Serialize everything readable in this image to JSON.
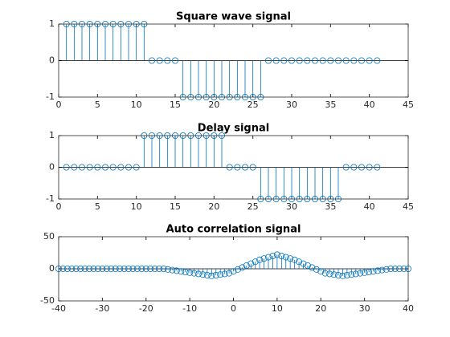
{
  "chart_data": [
    {
      "type": "stem",
      "title": "Square wave signal",
      "color": "#0072bd",
      "x": [
        1,
        2,
        3,
        4,
        5,
        6,
        7,
        8,
        9,
        10,
        11,
        12,
        13,
        14,
        15,
        16,
        17,
        18,
        19,
        20,
        21,
        22,
        23,
        24,
        25,
        26,
        27,
        28,
        29,
        30,
        31,
        32,
        33,
        34,
        35,
        36,
        37,
        38,
        39,
        40,
        41
      ],
      "values": [
        1,
        1,
        1,
        1,
        1,
        1,
        1,
        1,
        1,
        1,
        1,
        0,
        0,
        0,
        0,
        -1,
        -1,
        -1,
        -1,
        -1,
        -1,
        -1,
        -1,
        -1,
        -1,
        -1,
        0,
        0,
        0,
        0,
        0,
        0,
        0,
        0,
        0,
        0,
        0,
        0,
        0,
        0,
        0
      ],
      "xlim": [
        0,
        45
      ],
      "xticks": [
        0,
        5,
        10,
        15,
        20,
        25,
        30,
        35,
        40,
        45
      ],
      "ylim": [
        -1,
        1
      ],
      "yticks": [
        -1,
        0,
        1
      ]
    },
    {
      "type": "stem",
      "title": "Delay signal",
      "color": "#0072bd",
      "x": [
        1,
        2,
        3,
        4,
        5,
        6,
        7,
        8,
        9,
        10,
        11,
        12,
        13,
        14,
        15,
        16,
        17,
        18,
        19,
        20,
        21,
        22,
        23,
        24,
        25,
        26,
        27,
        28,
        29,
        30,
        31,
        32,
        33,
        34,
        35,
        36,
        37,
        38,
        39,
        40,
        41
      ],
      "values": [
        0,
        0,
        0,
        0,
        0,
        0,
        0,
        0,
        0,
        0,
        1,
        1,
        1,
        1,
        1,
        1,
        1,
        1,
        1,
        1,
        1,
        0,
        0,
        0,
        0,
        -1,
        -1,
        -1,
        -1,
        -1,
        -1,
        -1,
        -1,
        -1,
        -1,
        -1,
        0,
        0,
        0,
        0,
        0
      ],
      "xlim": [
        0,
        45
      ],
      "xticks": [
        0,
        5,
        10,
        15,
        20,
        25,
        30,
        35,
        40,
        45
      ],
      "ylim": [
        -1,
        1
      ],
      "yticks": [
        -1,
        0,
        1
      ]
    },
    {
      "type": "stem",
      "title": "Auto correlation signal",
      "color": "#0072bd",
      "x": [
        -40,
        -39,
        -38,
        -37,
        -36,
        -35,
        -34,
        -33,
        -32,
        -31,
        -30,
        -29,
        -28,
        -27,
        -26,
        -25,
        -24,
        -23,
        -22,
        -21,
        -20,
        -19,
        -18,
        -17,
        -16,
        -15,
        -14,
        -13,
        -12,
        -11,
        -10,
        -9,
        -8,
        -7,
        -6,
        -5,
        -4,
        -3,
        -2,
        -1,
        0,
        1,
        2,
        3,
        4,
        5,
        6,
        7,
        8,
        9,
        10,
        11,
        12,
        13,
        14,
        15,
        16,
        17,
        18,
        19,
        20,
        21,
        22,
        23,
        24,
        25,
        26,
        27,
        28,
        29,
        30,
        31,
        32,
        33,
        34,
        35,
        36,
        37,
        38,
        39,
        40
      ],
      "values": [
        0,
        0,
        0,
        0,
        0,
        0,
        0,
        0,
        0,
        0,
        0,
        0,
        0,
        0,
        0,
        0,
        0,
        0,
        0,
        0,
        0,
        0,
        0,
        0,
        0,
        -1,
        -2,
        -3,
        -4,
        -5,
        -6,
        -7,
        -8,
        -9,
        -10,
        -11,
        -10,
        -9,
        -8,
        -7,
        -4,
        -1,
        2,
        5,
        8,
        11,
        14,
        16,
        18,
        20,
        22,
        20,
        18,
        16,
        14,
        11,
        8,
        5,
        2,
        -1,
        -4,
        -7,
        -8,
        -9,
        -10,
        -11,
        -10,
        -9,
        -8,
        -7,
        -6,
        -5,
        -4,
        -3,
        -2,
        -1,
        0,
        0,
        0,
        0,
        0
      ],
      "xlim": [
        -40,
        40
      ],
      "xticks": [
        -40,
        -30,
        -20,
        -10,
        0,
        10,
        20,
        30,
        40
      ],
      "ylim": [
        -50,
        50
      ],
      "yticks": [
        -50,
        0,
        50
      ]
    }
  ]
}
